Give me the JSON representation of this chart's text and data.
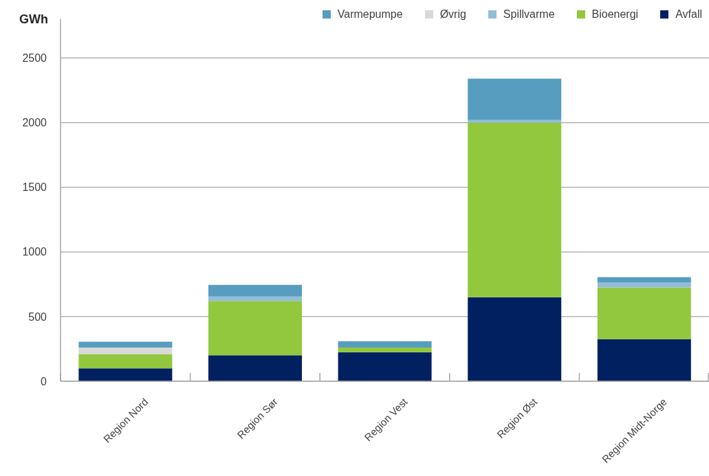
{
  "chart_data": {
    "type": "bar",
    "stacked": true,
    "ylabel": "GWh",
    "categories": [
      "Region Nord",
      "Region Sør",
      "Region Vest",
      "Region Øst",
      "Region Midt-Norge"
    ],
    "series": [
      {
        "name": "Avfall",
        "color": "#002060",
        "values": [
          100,
          200,
          225,
          650,
          325
        ]
      },
      {
        "name": "Bioenergi",
        "color": "#92c83e",
        "values": [
          110,
          420,
          35,
          1350,
          400
        ]
      },
      {
        "name": "Spillvarme",
        "color": "#93bdd8",
        "values": [
          null,
          35,
          null,
          20,
          40
        ]
      },
      {
        "name": "Øvrig",
        "color": "#d9d9d9",
        "values": [
          50,
          null,
          null,
          null,
          null
        ]
      },
      {
        "name": "Varmepumpe",
        "color": "#579dbf",
        "values": [
          45,
          90,
          50,
          320,
          40
        ]
      }
    ],
    "ylim": [
      0,
      2800
    ],
    "yticks": [
      0,
      500,
      1000,
      1500,
      2000,
      2500
    ],
    "grid": "y",
    "legend": "top right"
  }
}
